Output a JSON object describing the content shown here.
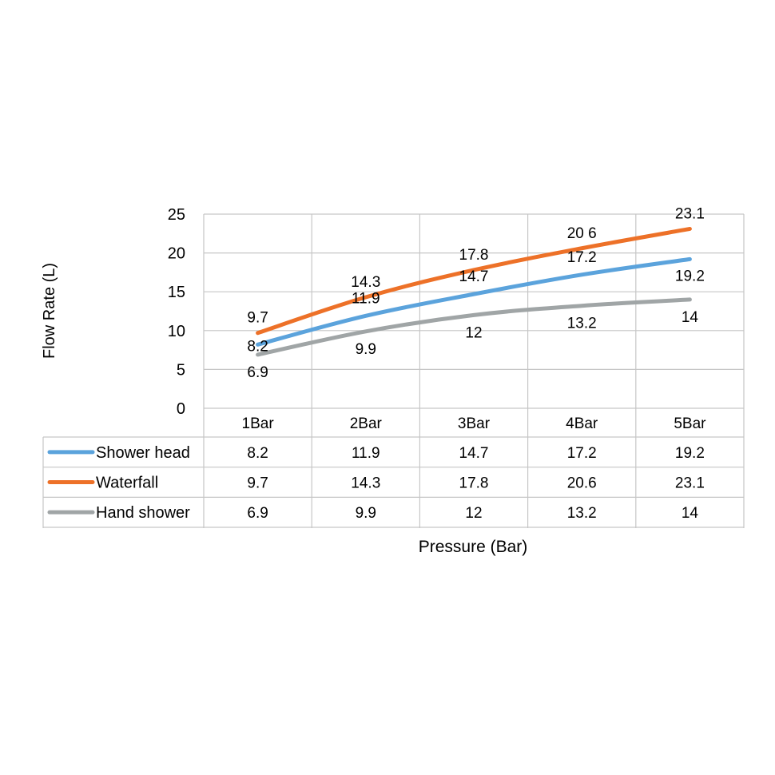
{
  "chart_data": {
    "type": "line",
    "categories": [
      "1Bar",
      "2Bar",
      "3Bar",
      "4Bar",
      "5Bar"
    ],
    "series": [
      {
        "name": "Shower head",
        "color": "#5ba3dc",
        "values": [
          8.2,
          11.9,
          14.7,
          17.2,
          19.2
        ],
        "labels": [
          "8.2",
          "11.9",
          "14.7",
          "17.2",
          "19.2"
        ],
        "label_position": "mixed"
      },
      {
        "name": "Waterfall",
        "color": "#ed7128",
        "values": [
          9.7,
          14.3,
          17.8,
          20.6,
          23.1
        ],
        "labels": [
          "9.7",
          "14.3",
          "17.8",
          "20 6",
          "23.1"
        ],
        "label_position": "above"
      },
      {
        "name": "Hand shower",
        "color": "#a0a5a6",
        "values": [
          6.9,
          9.9,
          12,
          13.2,
          14
        ],
        "labels": [
          "6.9",
          "9.9",
          "12",
          "13.2",
          "14"
        ],
        "label_position": "below"
      }
    ],
    "table_values": [
      [
        "8.2",
        "11.9",
        "14.7",
        "17.2",
        "19.2"
      ],
      [
        "9.7",
        "14.3",
        "17.8",
        "20.6",
        "23.1"
      ],
      [
        "6.9",
        "9.9",
        "12",
        "13.2",
        "14"
      ]
    ],
    "ylim": [
      0,
      25
    ],
    "yticks": [
      "0",
      "5",
      "10",
      "15",
      "20",
      "25"
    ],
    "ylabel": "Flow Rate (L)",
    "xlabel": "Pressure (Bar)",
    "grid": true,
    "legend": "data table"
  }
}
